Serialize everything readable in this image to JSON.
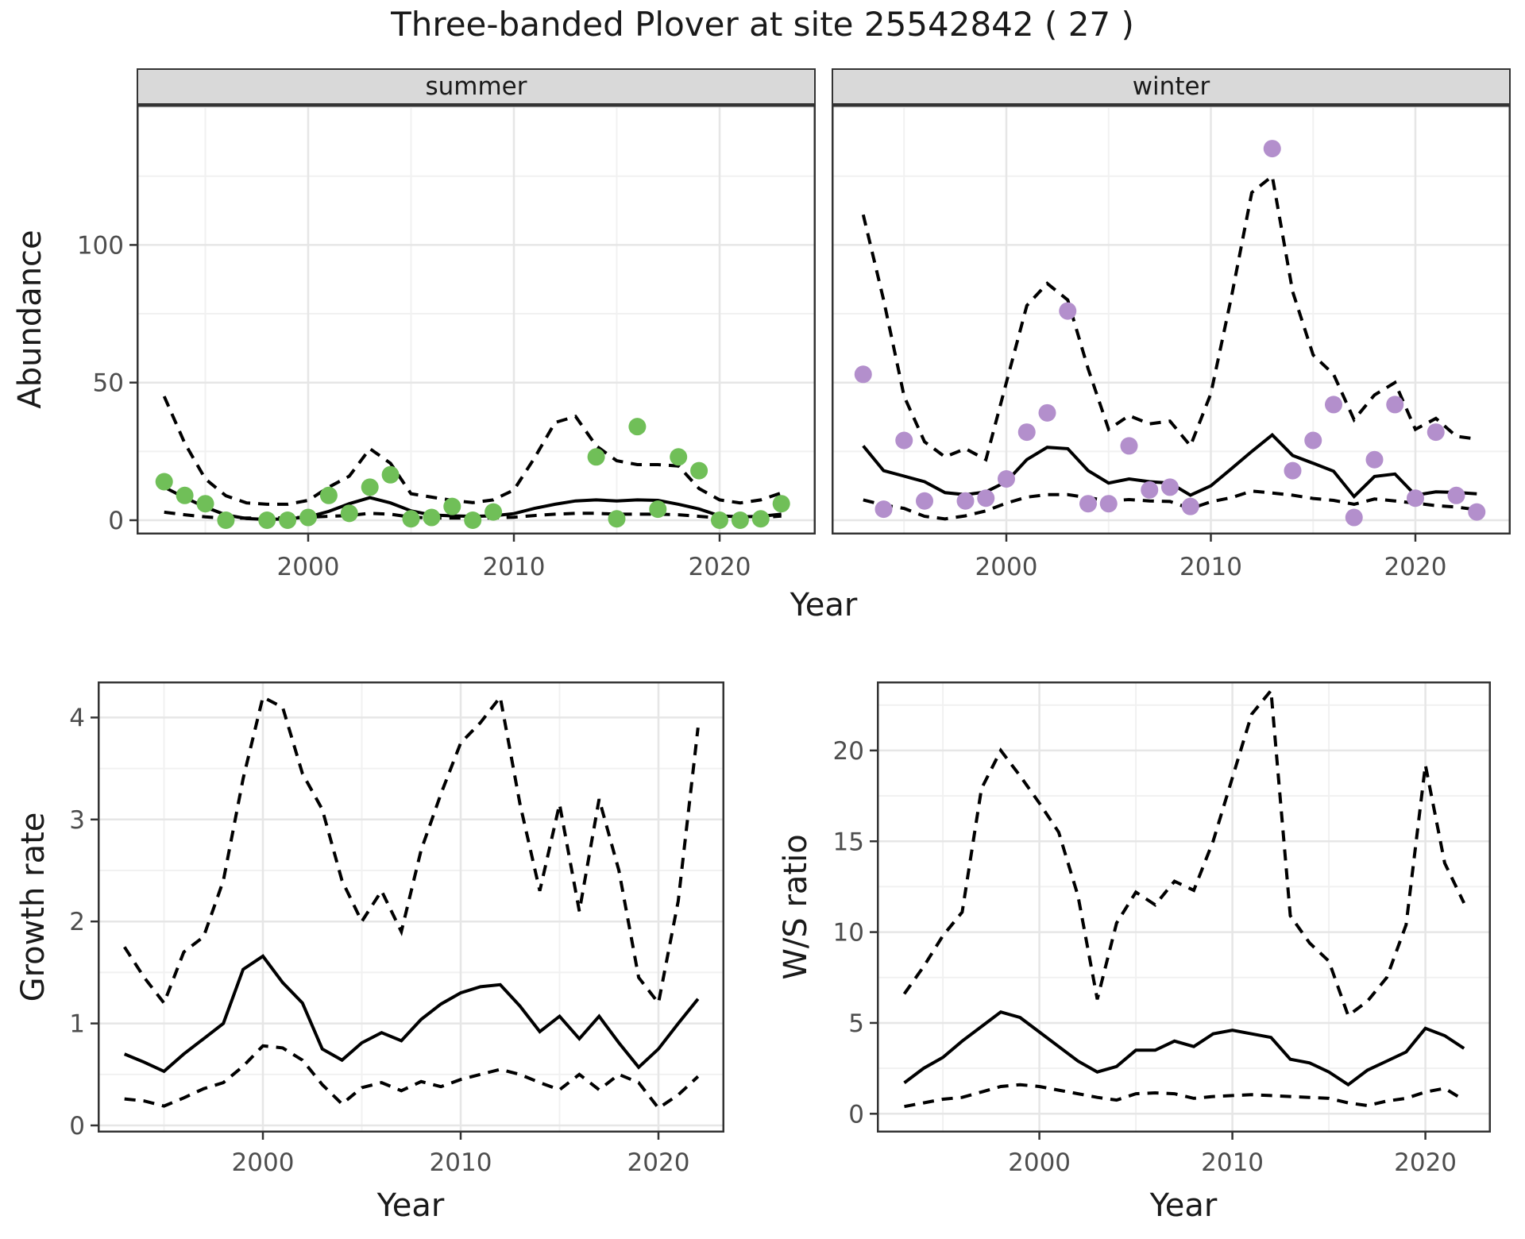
{
  "title": "Three-banded Plover at site 25542842 ( 27 )",
  "facets": {
    "summer": "summer",
    "winter": "winter"
  },
  "axis_titles": {
    "abundance": "Abundance",
    "year_top": "Year",
    "growth": "Growth rate",
    "year_growth": "Year",
    "ws": "W/S ratio",
    "year_ws": "Year"
  },
  "colors": {
    "summer_points": "#70BF58",
    "winter_points": "#B38FCC",
    "line": "#000000",
    "grid_major": "#e6e6e6",
    "grid_minor": "#f1f1f1",
    "strip_bg": "#d9d9d9",
    "panel_border": "#333333",
    "tick_text": "#4d4d4d"
  },
  "chart_data": [
    {
      "type": "line",
      "panel": "summer",
      "facet_label": "summer",
      "xlabel": "Year",
      "ylabel": "Abundance",
      "ylim": [
        0,
        150
      ],
      "xticks": [
        2000,
        2010,
        2020
      ],
      "xticks_minor": [
        1995,
        2005,
        2015
      ],
      "yticks": [
        0,
        50,
        100
      ],
      "yticks_minor": [
        25,
        75,
        125,
        150
      ],
      "x": [
        1993,
        1994,
        1995,
        1996,
        1997,
        1998,
        1999,
        2000,
        2001,
        2002,
        2003,
        2004,
        2005,
        2006,
        2007,
        2008,
        2009,
        2010,
        2011,
        2012,
        2013,
        2014,
        2015,
        2016,
        2017,
        2018,
        2019,
        2020,
        2021,
        2022,
        2023
      ],
      "series": [
        {
          "name": "observed counts",
          "style": "points",
          "color_key": "summer_points",
          "values": [
            14,
            9,
            6,
            0,
            null,
            0,
            0,
            1,
            9,
            2.5,
            12,
            16.5,
            0.5,
            1,
            5,
            0,
            3,
            null,
            null,
            null,
            null,
            23,
            0.5,
            34,
            4,
            23,
            18,
            0,
            0,
            0.5,
            6
          ]
        },
        {
          "name": "model fit",
          "style": "solid",
          "values": [
            12,
            8.2,
            4.8,
            1.9,
            0.6,
            0.3,
            0.5,
            1.2,
            3.2,
            6,
            8.2,
            6.3,
            3.4,
            1.9,
            1.6,
            1.4,
            1.6,
            2.4,
            4.3,
            5.8,
            7,
            7.4,
            7,
            7.4,
            7.2,
            5.8,
            4.1,
            1.6,
            1.2,
            1.4,
            2.2
          ]
        },
        {
          "name": "upper CI",
          "style": "dashed",
          "values": [
            45,
            28,
            15,
            8.9,
            6.3,
            5.8,
            5.8,
            7.2,
            12,
            16,
            26,
            20.7,
            9.6,
            8.4,
            7.2,
            6.4,
            7.4,
            11,
            22.6,
            35.5,
            37.7,
            27,
            21.6,
            20.2,
            20.2,
            19.7,
            11.5,
            7.4,
            6.3,
            7.4,
            9.9
          ]
        },
        {
          "name": "lower CI",
          "style": "dashed",
          "values": [
            2.9,
            2,
            1.2,
            0.7,
            0.8,
            0.8,
            0.9,
            1.1,
            1.4,
            1.7,
            2.5,
            2.2,
            1.1,
            0.8,
            0.8,
            0.8,
            0.8,
            1.1,
            1.7,
            2.2,
            2.5,
            2.5,
            2.2,
            2.2,
            2.2,
            2,
            1.4,
            0.8,
            0.7,
            1,
            1.5
          ]
        }
      ]
    },
    {
      "type": "line",
      "panel": "winter",
      "facet_label": "winter",
      "xlabel": "Year",
      "ylabel": "Abundance",
      "ylim": [
        0,
        150
      ],
      "xticks": [
        2000,
        2010,
        2020
      ],
      "xticks_minor": [
        1995,
        2005,
        2015
      ],
      "yticks": [
        0,
        50,
        100
      ],
      "yticks_minor": [
        25,
        75,
        125,
        150
      ],
      "x": [
        1993,
        1994,
        1995,
        1996,
        1997,
        1998,
        1999,
        2000,
        2001,
        2002,
        2003,
        2004,
        2005,
        2006,
        2007,
        2008,
        2009,
        2010,
        2011,
        2012,
        2013,
        2014,
        2015,
        2016,
        2017,
        2018,
        2019,
        2020,
        2021,
        2022,
        2023
      ],
      "series": [
        {
          "name": "observed counts",
          "style": "points",
          "color_key": "winter_points",
          "values": [
            53,
            4,
            29,
            7,
            null,
            7,
            8,
            15,
            32,
            39,
            76,
            6,
            6,
            27,
            11,
            12,
            5,
            null,
            null,
            null,
            135,
            18,
            29,
            42,
            1,
            22,
            42,
            8,
            32,
            9,
            3
          ]
        },
        {
          "name": "model fit",
          "style": "solid",
          "values": [
            27,
            18,
            16,
            14,
            10,
            9.3,
            10.3,
            14,
            22,
            26.5,
            26,
            18,
            13.5,
            15,
            14,
            13.5,
            9.1,
            12.5,
            18.7,
            25,
            31,
            23.5,
            20.7,
            17.8,
            8.6,
            15.9,
            16.8,
            9.1,
            10.3,
            10.1,
            9.6
          ]
        },
        {
          "name": "upper CI",
          "style": "dashed",
          "values": [
            111,
            80,
            45,
            28.5,
            23,
            26,
            22,
            50,
            78,
            86,
            80,
            55,
            33,
            38,
            35,
            36,
            27,
            46,
            81,
            119,
            125,
            83,
            60,
            53,
            36.5,
            45.5,
            50,
            33,
            37,
            30.5,
            29.5
          ]
        },
        {
          "name": "lower CI",
          "style": "dashed",
          "values": [
            7.4,
            5.5,
            4.3,
            1.4,
            0.5,
            1.6,
            3.4,
            6.2,
            8.4,
            9.3,
            9.3,
            8.2,
            7,
            7.5,
            7,
            6.8,
            4.2,
            6.7,
            8.2,
            10.6,
            9.9,
            9.1,
            7.9,
            7.2,
            5.8,
            7.7,
            7,
            6.2,
            5.3,
            4.8,
            3.8
          ]
        }
      ]
    },
    {
      "type": "line",
      "panel": "growth",
      "xlabel": "Year",
      "ylabel": "Growth rate",
      "ylim": [
        0,
        4.35
      ],
      "xticks": [
        2000,
        2010,
        2020
      ],
      "xticks_minor": [
        1995,
        2005,
        2015
      ],
      "yticks": [
        0,
        1,
        2,
        3,
        4
      ],
      "yticks_minor": [
        0.5,
        1.5,
        2.5,
        3.5
      ],
      "x": [
        1993,
        1994,
        1995,
        1996,
        1997,
        1998,
        1999,
        2000,
        2001,
        2002,
        2003,
        2004,
        2005,
        2006,
        2007,
        2008,
        2009,
        2010,
        2011,
        2012,
        2013,
        2014,
        2015,
        2016,
        2017,
        2018,
        2019,
        2020,
        2021,
        2022
      ],
      "series": [
        {
          "name": "growth rate",
          "style": "solid",
          "values": [
            0.7,
            0.62,
            0.53,
            0.7,
            0.85,
            1,
            1.53,
            1.66,
            1.4,
            1.2,
            0.75,
            0.64,
            0.81,
            0.91,
            0.83,
            1.04,
            1.19,
            1.3,
            1.36,
            1.38,
            1.17,
            0.92,
            1.07,
            0.85,
            1.07,
            0.81,
            0.57,
            0.75,
            1,
            1.24
          ]
        },
        {
          "name": "upper CI",
          "style": "dashed",
          "values": [
            1.75,
            1.45,
            1.2,
            1.7,
            1.85,
            2.4,
            3.4,
            4.2,
            4.1,
            3.45,
            3.1,
            2.4,
            2,
            2.3,
            1.9,
            2.7,
            3.25,
            3.75,
            3.95,
            4.2,
            3.15,
            2.3,
            3.15,
            2.1,
            3.2,
            2.5,
            1.45,
            1.2,
            2.2,
            3.9
          ]
        },
        {
          "name": "lower CI",
          "style": "dashed",
          "values": [
            0.26,
            0.24,
            0.19,
            0.27,
            0.36,
            0.42,
            0.58,
            0.78,
            0.76,
            0.64,
            0.4,
            0.21,
            0.37,
            0.42,
            0.34,
            0.43,
            0.38,
            0.45,
            0.5,
            0.55,
            0.5,
            0.42,
            0.35,
            0.5,
            0.35,
            0.5,
            0.42,
            0.17,
            0.3,
            0.48
          ]
        }
      ]
    },
    {
      "type": "line",
      "panel": "ws",
      "xlabel": "Year",
      "ylabel": "W/S ratio",
      "ylim": [
        0,
        23.8
      ],
      "xticks": [
        2000,
        2010,
        2020
      ],
      "xticks_minor": [
        1995,
        2005,
        2015
      ],
      "yticks": [
        0,
        5,
        10,
        15,
        20
      ],
      "yticks_minor": [
        2.5,
        7.5,
        12.5,
        17.5,
        22.5
      ],
      "x": [
        1993,
        1994,
        1995,
        1996,
        1997,
        1998,
        1999,
        2000,
        2001,
        2002,
        2003,
        2004,
        2005,
        2006,
        2007,
        2008,
        2009,
        2010,
        2011,
        2012,
        2013,
        2014,
        2015,
        2016,
        2017,
        2018,
        2019,
        2020,
        2021,
        2022
      ],
      "series": [
        {
          "name": "winter/summer ratio",
          "style": "solid",
          "values": [
            1.7,
            2.5,
            3.1,
            4,
            4.8,
            5.6,
            5.3,
            4.5,
            3.7,
            2.9,
            2.3,
            2.6,
            3.5,
            3.5,
            4,
            3.7,
            4.4,
            4.6,
            4.4,
            4.2,
            3,
            2.8,
            2.3,
            1.6,
            2.4,
            2.9,
            3.4,
            4.7,
            4.3,
            3.6
          ]
        },
        {
          "name": "upper CI",
          "style": "dashed",
          "values": [
            6.6,
            8.1,
            9.8,
            11.1,
            17.9,
            20,
            18.6,
            17.1,
            15.5,
            12,
            6.3,
            10.5,
            12.2,
            11.5,
            12.8,
            12.3,
            15,
            18.5,
            22,
            23.3,
            10.9,
            9.4,
            8.4,
            5.4,
            6.2,
            7.5,
            10.4,
            19.2,
            13.8,
            11.6
          ]
        },
        {
          "name": "lower CI",
          "style": "dashed",
          "values": [
            0.4,
            0.6,
            0.8,
            0.9,
            1.2,
            1.5,
            1.6,
            1.5,
            1.3,
            1.1,
            0.9,
            0.75,
            1.1,
            1.15,
            1.1,
            0.85,
            0.95,
            1,
            1.05,
            1,
            0.95,
            0.9,
            0.85,
            0.6,
            0.45,
            0.7,
            0.85,
            1.2,
            1.4,
            0.75
          ]
        }
      ]
    }
  ]
}
